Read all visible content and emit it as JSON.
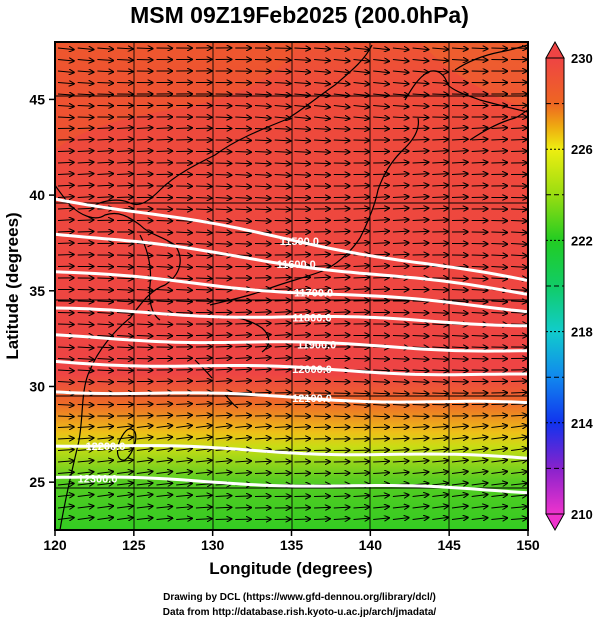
{
  "title": "MSM 09Z19Feb2025 (200.0hPa)",
  "map": {
    "lon_range": [
      120,
      150
    ],
    "lat_range": [
      22.5,
      48
    ],
    "x_ticks": [
      120,
      125,
      130,
      135,
      140,
      145,
      150
    ],
    "y_ticks": [
      25,
      30,
      35,
      40,
      45
    ],
    "xlabel": "Longitude (degrees)",
    "ylabel": "Latitude  (degrees)",
    "shaded_variable_range": [
      210,
      230
    ]
  },
  "colorbar": {
    "labels": [
      "230",
      "226",
      "222",
      "218",
      "214",
      "210"
    ],
    "stops": [
      {
        "value": 210,
        "color": "#ee33cc"
      },
      {
        "value": 212,
        "color": "#8822cc"
      },
      {
        "value": 214,
        "color": "#1133ee"
      },
      {
        "value": 216,
        "color": "#1188ee"
      },
      {
        "value": 218,
        "color": "#11cccc"
      },
      {
        "value": 220,
        "color": "#11cc66"
      },
      {
        "value": 222,
        "color": "#22cc22"
      },
      {
        "value": 224,
        "color": "#99dd11"
      },
      {
        "value": 226,
        "color": "#eeee11"
      },
      {
        "value": 227,
        "color": "#eeaa11"
      },
      {
        "value": 228,
        "color": "#ee6622"
      },
      {
        "value": 230,
        "color": "#ee4444"
      }
    ]
  },
  "contours": [
    {
      "label": "11500.0",
      "label_lon": 135.5,
      "label_lat": 37.6
    },
    {
      "label": "11600.0",
      "label_lon": 135.3,
      "label_lat": 36.4
    },
    {
      "label": "11700.0",
      "label_lon": 136.4,
      "label_lat": 34.9
    },
    {
      "label": "11800.0",
      "label_lon": 136.3,
      "label_lat": 33.6
    },
    {
      "label": "11900.0",
      "label_lon": 136.6,
      "label_lat": 32.2
    },
    {
      "label": "12000.0",
      "label_lon": 136.3,
      "label_lat": 30.9
    },
    {
      "label": "12100.0",
      "label_lon": 136.3,
      "label_lat": 29.4
    },
    {
      "label": "12200.0",
      "label_lon": 123.2,
      "label_lat": 26.9
    },
    {
      "label": "12300.0",
      "label_lon": 122.7,
      "label_lat": 25.2
    }
  ],
  "footer": {
    "credit": "Drawing by DCL (https://www.gfd-dennou.org/library/dcl/)",
    "source": "Data from http://database.rish.kyoto-u.ac.jp/arch/jmadata/"
  }
}
